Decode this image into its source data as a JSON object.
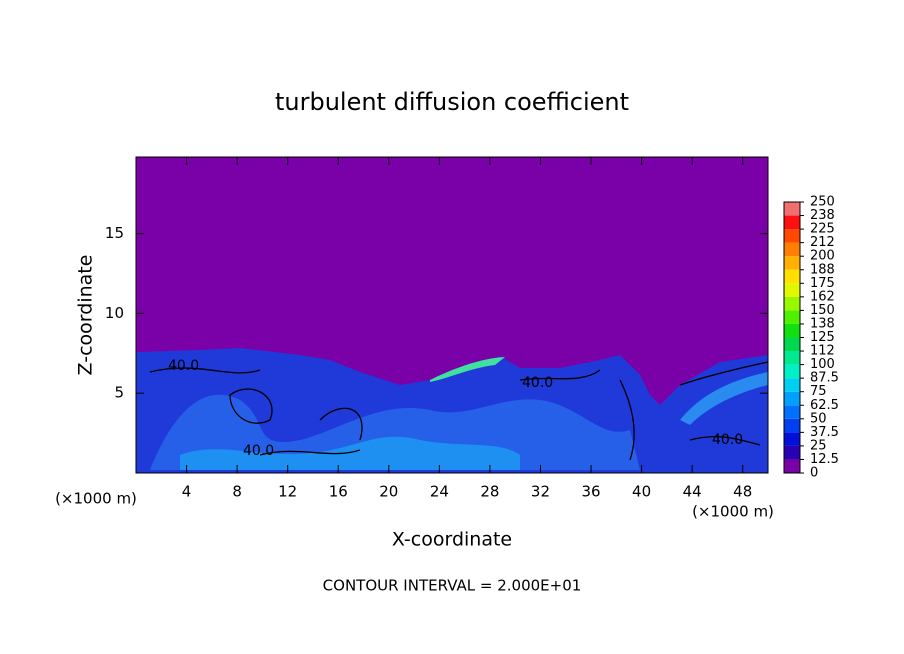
{
  "chart_data": {
    "type": "contour",
    "title": "turbulent diffusion coefficient",
    "x_label": "X-coordinate",
    "y_label": "Z-coordinate",
    "x_unit_left": "(×1000 m)",
    "x_unit_right": "(×1000 m)",
    "footer": "CONTOUR INTERVAL = 2.000E+01",
    "contour_labels": [
      "40.0",
      "40.0",
      "40.0",
      "40.0"
    ],
    "xlim": [
      0,
      50
    ],
    "xticks": [
      4,
      8,
      12,
      16,
      20,
      24,
      28,
      32,
      36,
      40,
      44,
      48
    ],
    "ylim": [
      0,
      19.8
    ],
    "yticks": [
      5,
      10,
      15
    ],
    "colorbar": {
      "ticks": [
        0,
        12.5,
        25,
        37.5,
        50,
        62.5,
        75,
        87.5,
        100,
        {
          "value": 112.5,
          "label": "112"
        },
        125,
        {
          "value": 137.5,
          "label": "138"
        },
        150,
        {
          "value": 162.5,
          "label": "162"
        },
        175,
        {
          "value": 187.5,
          "label": "188"
        },
        200,
        {
          "value": 212.5,
          "label": "212"
        },
        225,
        {
          "value": 237.5,
          "label": "238"
        },
        250
      ],
      "colors": [
        "#7a00a8",
        "#2a00b4",
        "#0010d8",
        "#0040f0",
        "#0070ff",
        "#00a0ff",
        "#00d0f0",
        "#00f0c8",
        "#00e890",
        "#00d850",
        "#10e010",
        "#50f000",
        "#98f800",
        "#e0f800",
        "#ffe000",
        "#ffb000",
        "#ff8000",
        "#ff4800",
        "#ff1010",
        "#f07070"
      ]
    }
  }
}
